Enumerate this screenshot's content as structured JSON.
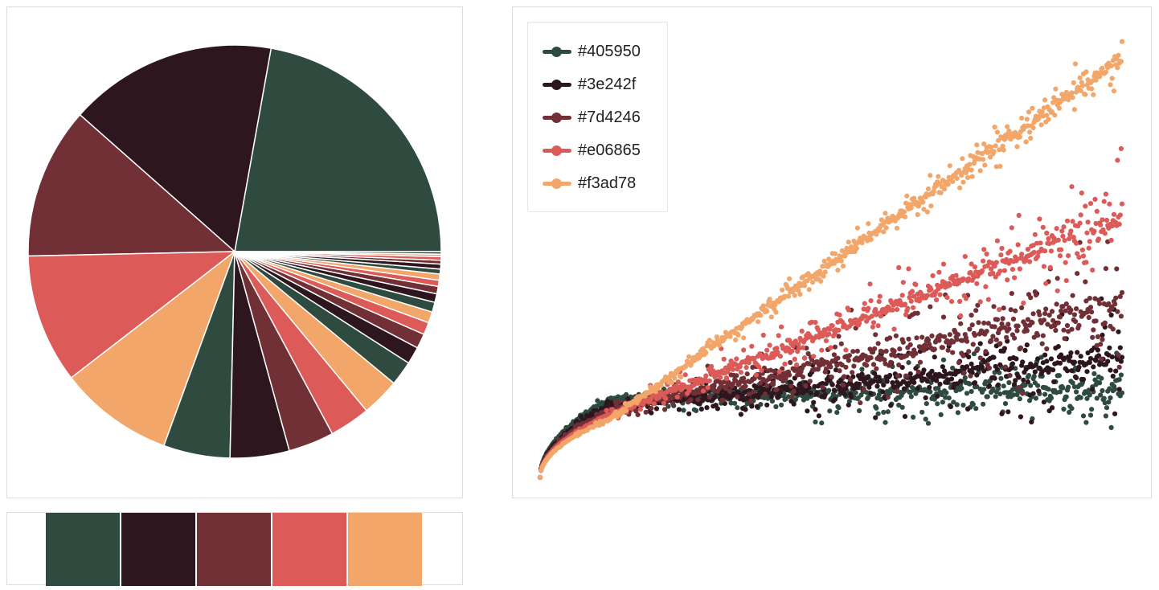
{
  "palette": [
    "#2f4b40",
    "#2e161e",
    "#712f36",
    "#dc5a57",
    "#f2a66a"
  ],
  "chart_data": [
    {
      "type": "pie",
      "slices": [
        23.0,
        16.9,
        12.3,
        10.5,
        9.3,
        5.4,
        4.8,
        3.7,
        3.3,
        3.1,
        2.0,
        1.4,
        1.2,
        1.0,
        0.9,
        0.8,
        0.7,
        0.6,
        0.5,
        0.5,
        0.4,
        0.4,
        0.3,
        0.3,
        0.2,
        0.2
      ],
      "slice_colors_cycle": [
        "#2f4b40",
        "#2e161e",
        "#712f36",
        "#dc5a57",
        "#f2a66a"
      ],
      "start_angle_deg": 0,
      "direction": "counterclockwise"
    },
    {
      "type": "scatter",
      "xlim": [
        0,
        1
      ],
      "ylim": [
        0,
        1
      ],
      "grid": false,
      "legend_position": "top-left",
      "series": [
        {
          "name": "#405950",
          "color": "#2f4b40",
          "trend_start": 0.175,
          "trend_end": 0.2,
          "spread_start": 0.0,
          "spread_end": 0.1
        },
        {
          "name": "#3e242f",
          "color": "#2e161e",
          "trend_start": 0.16,
          "trend_end": 0.265,
          "spread_start": 0.0,
          "spread_end": 0.13
        },
        {
          "name": "#7d4246",
          "color": "#712f36",
          "trend_start": 0.15,
          "trend_end": 0.385,
          "spread_start": 0.0,
          "spread_end": 0.14
        },
        {
          "name": "#e06865",
          "color": "#dc5a57",
          "trend_start": 0.14,
          "trend_end": 0.575,
          "spread_start": 0.0,
          "spread_end": 0.11
        },
        {
          "name": "#f3ad78",
          "color": "#f2a66a",
          "trend_start": 0.13,
          "trend_end": 0.93,
          "spread_start": 0.0,
          "spread_end": 0.06
        }
      ]
    }
  ],
  "legend": {
    "items": [
      {
        "label": "#405950",
        "color": "#2f4b40"
      },
      {
        "label": "#3e242f",
        "color": "#2e161e"
      },
      {
        "label": "#7d4246",
        "color": "#712f36"
      },
      {
        "label": "#e06865",
        "color": "#dc5a57"
      },
      {
        "label": "#f3ad78",
        "color": "#f2a66a"
      }
    ]
  }
}
